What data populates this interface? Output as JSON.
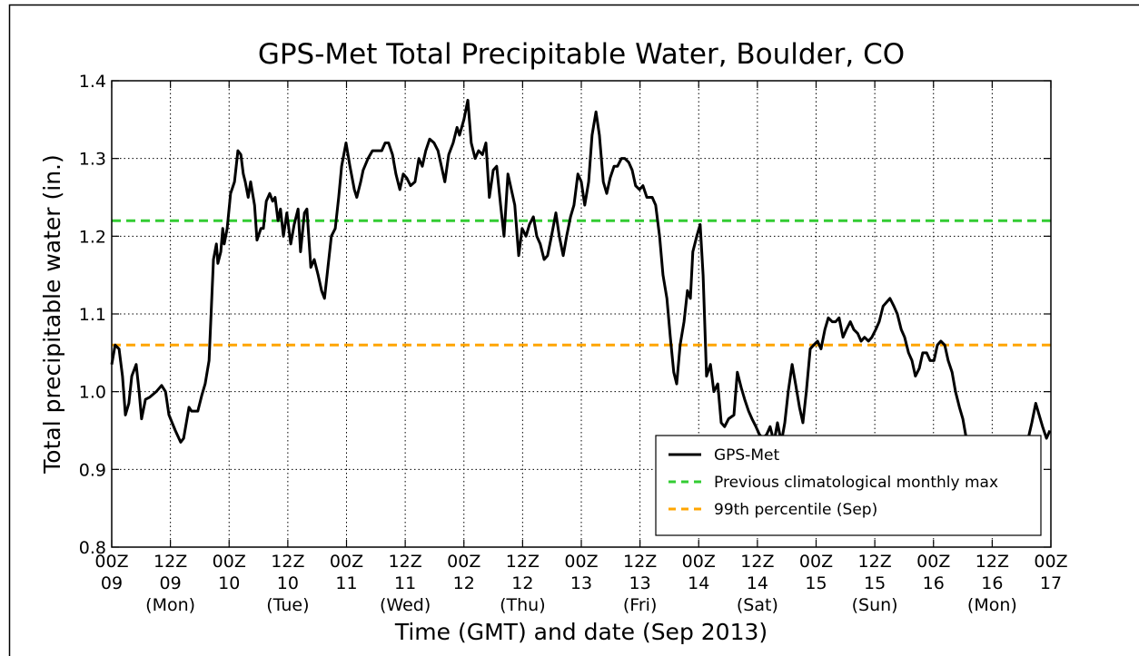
{
  "chart_data": {
    "type": "line",
    "title": "GPS-Met Total Precipitable Water, Boulder, CO",
    "x_label": "Time (GMT) and date (Sep 2013)",
    "y_label": "Total precipitable water (in.)",
    "xlim": [
      0,
      192
    ],
    "ylim": [
      0.8,
      1.4
    ],
    "xticks": [
      {
        "value": 0,
        "label": [
          "00Z",
          "09"
        ]
      },
      {
        "value": 12,
        "label": [
          "12Z",
          "09",
          "(Mon)"
        ]
      },
      {
        "value": 24,
        "label": [
          "00Z",
          "10"
        ]
      },
      {
        "value": 36,
        "label": [
          "12Z",
          "10",
          "(Tue)"
        ]
      },
      {
        "value": 48,
        "label": [
          "00Z",
          "11"
        ]
      },
      {
        "value": 60,
        "label": [
          "12Z",
          "11",
          "(Wed)"
        ]
      },
      {
        "value": 72,
        "label": [
          "00Z",
          "12"
        ]
      },
      {
        "value": 84,
        "label": [
          "12Z",
          "12",
          "(Thu)"
        ]
      },
      {
        "value": 96,
        "label": [
          "00Z",
          "13"
        ]
      },
      {
        "value": 108,
        "label": [
          "12Z",
          "13",
          "(Fri)"
        ]
      },
      {
        "value": 120,
        "label": [
          "00Z",
          "14"
        ]
      },
      {
        "value": 132,
        "label": [
          "12Z",
          "14",
          "(Sat)"
        ]
      },
      {
        "value": 144,
        "label": [
          "00Z",
          "15"
        ]
      },
      {
        "value": 156,
        "label": [
          "12Z",
          "15",
          "(Sun)"
        ]
      },
      {
        "value": 168,
        "label": [
          "00Z",
          "16"
        ]
      },
      {
        "value": 180,
        "label": [
          "12Z",
          "16",
          "(Mon)"
        ]
      },
      {
        "value": 192,
        "label": [
          "00Z",
          "17"
        ]
      }
    ],
    "yticks": [
      0.8,
      0.9,
      {
        "value": 1,
        "label": "1.0"
      },
      1.1,
      1.2,
      1.3,
      1.4
    ],
    "grid": true,
    "legend_position": "lower right",
    "series": [
      {
        "name": "GPS-Met",
        "color": "#000000",
        "x": [
          0,
          0.7,
          1.5,
          2.2,
          2.8,
          3.5,
          4.1,
          5.0,
          5.6,
          6.1,
          6.9,
          7.8,
          9.1,
          10.2,
          11.0,
          11.7,
          13.0,
          14.1,
          14.7,
          15.8,
          16.3,
          17.6,
          18.4,
          19.1,
          19.9,
          20.8,
          21.4,
          21.7,
          22.3,
          22.7,
          23.0,
          23.6,
          24.3,
          25.1,
          25.8,
          26.4,
          26.9,
          27.3,
          27.9,
          28.4,
          29.2,
          29.7,
          30.5,
          31.0,
          31.6,
          32.3,
          32.9,
          33.4,
          34.0,
          34.5,
          35.1,
          35.8,
          36.6,
          37.3,
          38.1,
          38.6,
          39.4,
          39.9,
          40.7,
          41.4,
          42.2,
          42.9,
          43.5,
          44.2,
          44.9,
          45.7,
          46.4,
          47.0,
          47.9,
          48.7,
          49.6,
          50.1,
          50.9,
          51.4,
          52.4,
          53.3,
          55.2,
          55.9,
          56.6,
          57.4,
          58.1,
          58.9,
          59.6,
          60.3,
          61.1,
          62.0,
          62.8,
          63.5,
          64.2,
          65.0,
          65.9,
          66.7,
          67.4,
          68.1,
          68.9,
          69.8,
          70.6,
          71.1,
          72.0,
          72.8,
          73.5,
          74.3,
          75.0,
          75.8,
          76.5,
          77.2,
          78.0,
          78.7,
          79.5,
          80.2,
          81.0,
          81.7,
          82.4,
          83.2,
          83.9,
          84.7,
          85.4,
          86.2,
          86.9,
          87.6,
          88.4,
          89.1,
          89.9,
          90.8,
          91.5,
          92.3,
          93.0,
          93.8,
          94.5,
          95.3,
          96.0,
          96.7,
          97.5,
          98.2,
          99.0,
          99.7,
          100.5,
          101.2,
          101.9,
          102.7,
          103.4,
          104.2,
          104.9,
          105.7,
          106.4,
          107.1,
          107.9,
          108.6,
          109.4,
          110.5,
          111.2,
          112.0,
          112.7,
          113.5,
          114.2,
          114.9,
          115.5,
          116.2,
          117.0,
          117.7,
          118.3,
          118.8,
          119.6,
          120.3,
          120.9,
          121.6,
          122.4,
          123.1,
          123.9,
          124.6,
          125.3,
          126.1,
          127.2,
          127.9,
          128.7,
          129.4,
          130.2,
          130.9,
          131.7,
          132.4,
          133.1,
          133.9,
          134.6,
          135.4,
          136.1,
          136.9,
          137.6,
          138.3,
          139.1,
          139.8,
          140.6,
          141.3,
          142.0,
          142.8,
          143.5,
          144.3,
          145.0,
          145.8,
          146.5,
          147.3,
          148.0,
          148.7,
          149.5,
          150.2,
          151.0,
          151.7,
          152.5,
          153.2,
          153.9,
          154.7,
          155.4,
          156.2,
          156.9,
          157.7,
          158.4,
          159.1,
          159.9,
          160.6,
          161.4,
          162.1,
          162.9,
          163.6,
          164.3,
          165.1,
          165.8,
          166.6,
          167.3,
          168.1,
          168.8,
          169.5,
          170.3,
          171.0,
          171.8,
          172.5,
          173.3,
          174.0,
          174.7,
          175.5,
          176.2,
          177.0,
          177.7,
          179.6,
          181.4,
          183.3,
          185.1,
          187.0,
          188.1,
          188.9,
          189.6,
          190.3,
          191.1,
          191.8
        ],
        "values": [
          1.035,
          1.06,
          1.055,
          1.02,
          0.97,
          0.985,
          1.02,
          1.035,
          1.0,
          0.965,
          0.99,
          0.993,
          1.0,
          1.008,
          1.0,
          0.97,
          0.95,
          0.935,
          0.94,
          0.98,
          0.975,
          0.975,
          0.995,
          1.01,
          1.04,
          1.17,
          1.19,
          1.165,
          1.18,
          1.21,
          1.19,
          1.21,
          1.255,
          1.27,
          1.31,
          1.305,
          1.28,
          1.27,
          1.25,
          1.27,
          1.24,
          1.195,
          1.21,
          1.21,
          1.245,
          1.255,
          1.245,
          1.25,
          1.22,
          1.235,
          1.2,
          1.23,
          1.19,
          1.215,
          1.235,
          1.18,
          1.23,
          1.235,
          1.16,
          1.17,
          1.15,
          1.13,
          1.12,
          1.16,
          1.2,
          1.21,
          1.25,
          1.29,
          1.32,
          1.29,
          1.26,
          1.25,
          1.27,
          1.285,
          1.3,
          1.31,
          1.31,
          1.32,
          1.32,
          1.305,
          1.28,
          1.26,
          1.28,
          1.275,
          1.265,
          1.27,
          1.3,
          1.29,
          1.31,
          1.325,
          1.32,
          1.31,
          1.29,
          1.27,
          1.305,
          1.32,
          1.34,
          1.33,
          1.35,
          1.375,
          1.32,
          1.3,
          1.31,
          1.305,
          1.32,
          1.25,
          1.285,
          1.29,
          1.24,
          1.2,
          1.28,
          1.26,
          1.24,
          1.175,
          1.21,
          1.2,
          1.215,
          1.225,
          1.2,
          1.19,
          1.17,
          1.175,
          1.2,
          1.23,
          1.2,
          1.175,
          1.2,
          1.225,
          1.24,
          1.28,
          1.27,
          1.24,
          1.27,
          1.33,
          1.36,
          1.33,
          1.27,
          1.255,
          1.275,
          1.29,
          1.29,
          1.3,
          1.3,
          1.295,
          1.285,
          1.265,
          1.26,
          1.265,
          1.25,
          1.25,
          1.24,
          1.2,
          1.15,
          1.12,
          1.07,
          1.025,
          1.01,
          1.06,
          1.09,
          1.13,
          1.12,
          1.18,
          1.2,
          1.215,
          1.15,
          1.02,
          1.035,
          1.0,
          1.01,
          0.96,
          0.955,
          0.965,
          0.97,
          1.025,
          1.005,
          0.99,
          0.975,
          0.965,
          0.955,
          0.945,
          0.94,
          0.945,
          0.955,
          0.935,
          0.96,
          0.935,
          0.96,
          1.0,
          1.035,
          1.01,
          0.98,
          0.96,
          1.0,
          1.055,
          1.06,
          1.065,
          1.055,
          1.08,
          1.095,
          1.09,
          1.09,
          1.095,
          1.07,
          1.08,
          1.09,
          1.08,
          1.075,
          1.065,
          1.07,
          1.065,
          1.07,
          1.08,
          1.09,
          1.11,
          1.115,
          1.12,
          1.11,
          1.1,
          1.08,
          1.07,
          1.05,
          1.04,
          1.02,
          1.03,
          1.05,
          1.05,
          1.04,
          1.04,
          1.06,
          1.065,
          1.06,
          1.04,
          1.025,
          1.0,
          0.98,
          0.965,
          0.94,
          0.935,
          0.91,
          0.895,
          0.88,
          0.87,
          0.87,
          0.88,
          0.9,
          0.93,
          0.96,
          0.985,
          0.97,
          0.955,
          0.94,
          0.95
        ]
      }
    ],
    "reference_lines": [
      {
        "name": "Previous climatological monthly max",
        "color": "#33cc33",
        "value": 1.22
      },
      {
        "name": "99th percentile (Sep)",
        "color": "#ffa500",
        "value": 1.06
      }
    ]
  }
}
